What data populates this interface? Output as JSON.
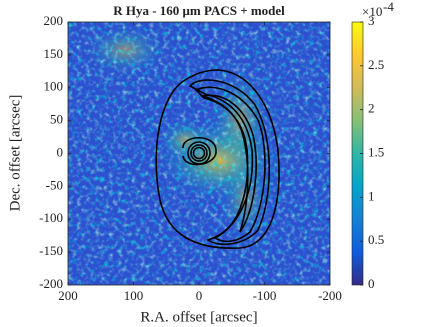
{
  "chart_data": {
    "type": "heatmap",
    "title": "R Hya - 160 μm PACS + model",
    "x_label": "R.A. offset [arcsec]",
    "y_label": "Dec. offset [arcsec]",
    "xlim": [
      200,
      -200
    ],
    "xticks": [
      200,
      100,
      0,
      -100,
      -200
    ],
    "ylim": [
      -200,
      200
    ],
    "yticks": [
      -200,
      -150,
      -100,
      -50,
      0,
      50,
      100,
      150,
      200
    ],
    "colorbar": {
      "lim": [
        0,
        3
      ],
      "ticks": [
        0,
        0.5,
        1,
        1.5,
        2,
        2.5,
        3
      ],
      "scale_base": "×10",
      "scale_exponent": "-4",
      "colormap": [
        "#352a87",
        "#0f5cdd",
        "#1481d6",
        "#06a4ca",
        "#2eb7a4",
        "#87bf77",
        "#d1bb59",
        "#fec832",
        "#f9fb0e"
      ]
    }
  }
}
